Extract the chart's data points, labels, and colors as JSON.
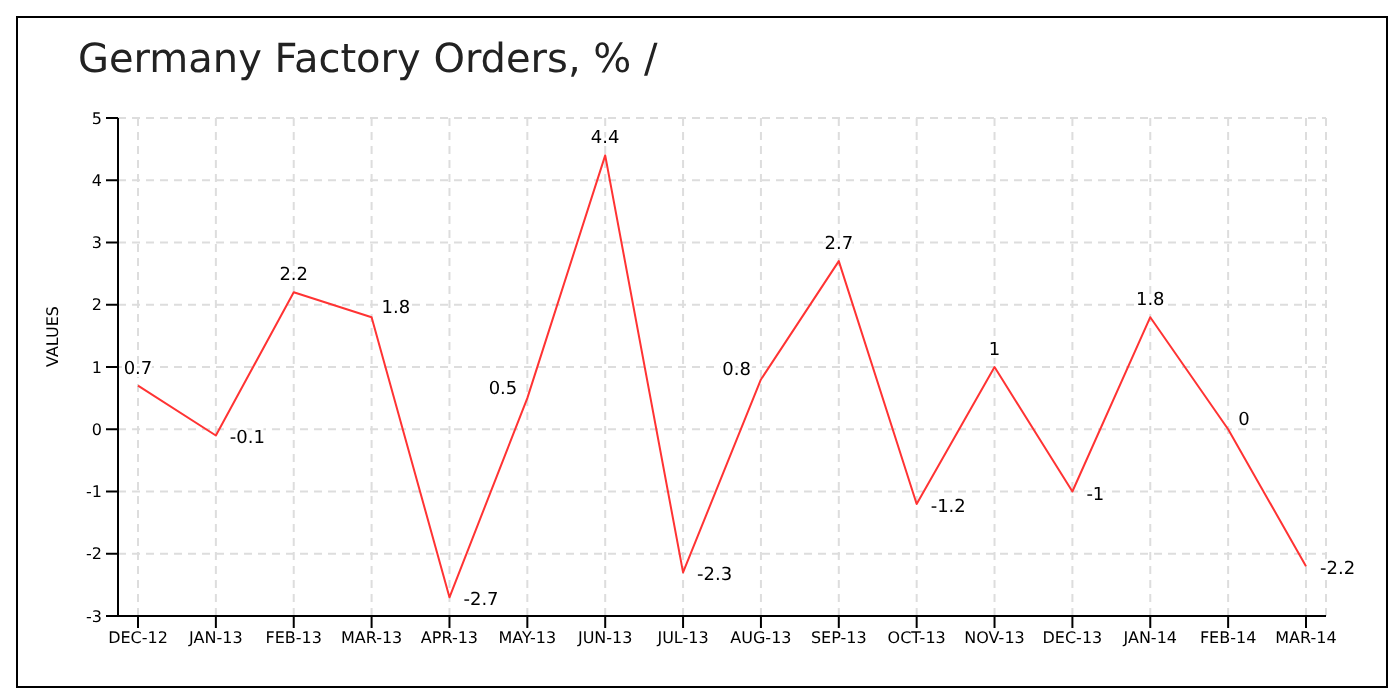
{
  "chart_data": {
    "type": "line",
    "title": "Germany Factory Orders, % /",
    "ylabel": "VALUES",
    "categories": [
      "DEC-12",
      "JAN-13",
      "FEB-13",
      "MAR-13",
      "APR-13",
      "MAY-13",
      "JUN-13",
      "JUL-13",
      "AUG-13",
      "SEP-13",
      "OCT-13",
      "NOV-13",
      "DEC-13",
      "JAN-14",
      "FEB-14",
      "MAR-14"
    ],
    "series": [
      {
        "color": "#ff3333",
        "values": [
          0.7,
          -0.1,
          2.2,
          1.8,
          -2.7,
          0.5,
          4.4,
          -2.3,
          0.8,
          2.7,
          -1.2,
          1,
          -1,
          1.8,
          0,
          -2.2
        ]
      }
    ],
    "ylim": [
      -3,
      5
    ],
    "yticks": [
      -3,
      -2,
      -1,
      0,
      1,
      2,
      3,
      4,
      5
    ],
    "grid": true,
    "data_labels": true,
    "marker": "none",
    "line_style": "solid"
  }
}
